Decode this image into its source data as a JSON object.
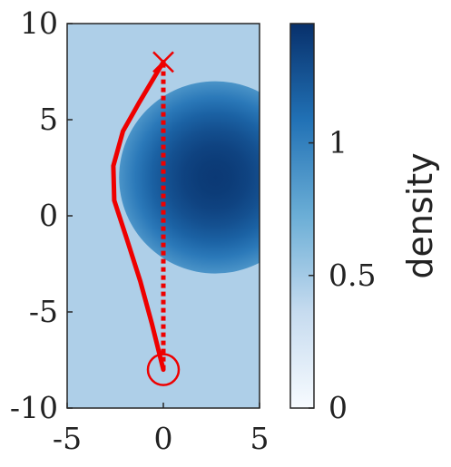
{
  "chart_data": {
    "type": "heatmap",
    "title": "",
    "xlabel": "",
    "ylabel": "",
    "xlim": [
      -5,
      5
    ],
    "ylim": [
      -10,
      10
    ],
    "x_ticks": [
      {
        "value": -5,
        "label": "-5"
      },
      {
        "value": 0,
        "label": "0"
      },
      {
        "value": 5,
        "label": "5"
      }
    ],
    "y_ticks": [
      {
        "value": 10,
        "label": "10"
      },
      {
        "value": 5,
        "label": "5"
      },
      {
        "value": 0,
        "label": "0"
      },
      {
        "value": -5,
        "label": "-5"
      },
      {
        "value": -10,
        "label": "-10"
      }
    ],
    "density_field": {
      "background_density": 0.46,
      "disc_center": [
        2.7,
        2.0
      ],
      "disc_radius": 5.0,
      "disc_peak_density": 1.4,
      "disc_edge_density": 0.88
    },
    "colorbar": {
      "label": "density",
      "range": [
        0,
        1.45
      ],
      "ticks": [
        {
          "value": 0,
          "label": "0"
        },
        {
          "value": 0.5,
          "label": "0.5"
        },
        {
          "value": 1,
          "label": "1"
        }
      ],
      "colors": [
        "#f7fbff",
        "#c6dbef",
        "#6baed6",
        "#2171b5",
        "#08306b"
      ]
    },
    "series": [
      {
        "style": "solid",
        "color": "#ee0000",
        "points": [
          [
            0,
            -8
          ],
          [
            -0.6,
            -5.6
          ],
          [
            -1.2,
            -3.4
          ],
          [
            -1.9,
            -1.2
          ],
          [
            -2.55,
            0.8
          ],
          [
            -2.6,
            2.6
          ],
          [
            -2.1,
            4.4
          ],
          [
            -1.25,
            5.9
          ],
          [
            0,
            8
          ]
        ]
      },
      {
        "style": "dotted",
        "color": "#ee0000",
        "points": [
          [
            0,
            -8
          ],
          [
            0,
            8
          ]
        ]
      }
    ],
    "markers": [
      {
        "shape": "circle",
        "x": 0,
        "y": -8,
        "color": "#ee0000"
      },
      {
        "shape": "cross",
        "x": 0,
        "y": 8,
        "color": "#ee0000"
      }
    ]
  }
}
